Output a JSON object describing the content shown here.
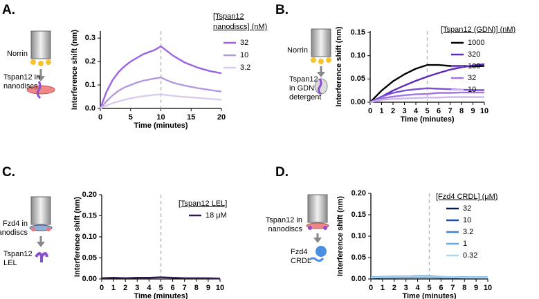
{
  "chart_data": [
    {
      "type": "line",
      "panel_label": "A.",
      "schematic_labels": [
        [
          "Norrin"
        ],
        [
          "Tspan12 in",
          "nanodiscs"
        ]
      ],
      "xlabel": "Time (minutes)",
      "ylabel": "Interference shift (nm)",
      "xlim": [
        0,
        20
      ],
      "ylim": [
        0,
        0.33
      ],
      "xticks": [
        0,
        5,
        10,
        15,
        20
      ],
      "yticks": [
        {
          "value": 0,
          "label": "0.0"
        },
        0.1,
        0.2,
        0.3
      ],
      "vline": 10,
      "legend_title": [
        "[Tspan12",
        "nanodiscs] (nM)"
      ],
      "x": [
        0,
        1,
        2,
        3,
        4,
        5,
        6,
        7,
        8,
        9,
        10,
        11,
        12,
        13,
        14,
        15,
        16,
        17,
        18,
        19,
        20
      ],
      "series": [
        {
          "name": "32",
          "color": "#9a63e6",
          "values": [
            0,
            0.07,
            0.12,
            0.155,
            0.18,
            0.2,
            0.215,
            0.23,
            0.24,
            0.25,
            0.265,
            0.245,
            0.225,
            0.21,
            0.195,
            0.185,
            0.175,
            0.167,
            0.16,
            0.155,
            0.15
          ]
        },
        {
          "name": "10",
          "color": "#b596e0",
          "values": [
            0,
            0.03,
            0.055,
            0.075,
            0.09,
            0.1,
            0.11,
            0.118,
            0.123,
            0.128,
            0.132,
            0.12,
            0.11,
            0.103,
            0.097,
            0.092,
            0.087,
            0.083,
            0.079,
            0.075,
            0.072
          ]
        },
        {
          "name": "3.2",
          "color": "#d9cbee",
          "values": [
            0,
            0.012,
            0.022,
            0.03,
            0.037,
            0.043,
            0.048,
            0.052,
            0.055,
            0.058,
            0.06,
            0.057,
            0.054,
            0.051,
            0.049,
            0.047,
            0.045,
            0.043,
            0.041,
            0.039,
            0.037
          ]
        }
      ]
    },
    {
      "type": "line",
      "panel_label": "B.",
      "schematic_labels": [
        [
          "Norrin"
        ],
        [
          "Tspan12",
          "in GDN",
          "detergent"
        ]
      ],
      "xlabel": "Time (minutes)",
      "ylabel": "Interference shift (nm)",
      "xlim": [
        0,
        10
      ],
      "ylim": [
        0,
        0.153
      ],
      "xticks": [
        0,
        1,
        2,
        3,
        4,
        5,
        6,
        7,
        8,
        9,
        10
      ],
      "yticks": [
        {
          "value": 0,
          "label": "0.00"
        },
        {
          "value": 0.05,
          "label": "0.05"
        },
        {
          "value": 0.1,
          "label": "0.10"
        },
        {
          "value": 0.15,
          "label": "0.15"
        }
      ],
      "vline": 5,
      "legend_title": [
        "[Tspan12 (GDN)] (nM)"
      ],
      "x": [
        0,
        1,
        2,
        3,
        4,
        5,
        6,
        7,
        8,
        9,
        10
      ],
      "series": [
        {
          "name": "1000",
          "color": "#000000",
          "values": [
            0,
            0.025,
            0.045,
            0.06,
            0.072,
            0.08,
            0.08,
            0.078,
            0.078,
            0.077,
            0.078
          ]
        },
        {
          "name": "320",
          "color": "#5a2bb8",
          "values": [
            0,
            0.012,
            0.025,
            0.036,
            0.046,
            0.055,
            0.063,
            0.07,
            0.075,
            0.079,
            0.082
          ]
        },
        {
          "name": "100",
          "color": "#7b4fd6",
          "values": [
            0,
            0.012,
            0.02,
            0.025,
            0.028,
            0.03,
            0.029,
            0.028,
            0.027,
            0.026,
            0.026
          ]
        },
        {
          "name": "32",
          "color": "#a273e6",
          "values": [
            0,
            0.008,
            0.012,
            0.015,
            0.017,
            0.018,
            0.02,
            0.02,
            0.021,
            0.021,
            0.021
          ]
        },
        {
          "name": "10",
          "color": "#cdb6f0",
          "values": [
            0,
            0.005,
            0.007,
            0.008,
            0.009,
            0.01,
            0.01,
            0.011,
            0.011,
            0.011,
            0.011
          ]
        }
      ]
    },
    {
      "type": "line",
      "panel_label": "C.",
      "schematic_labels": [
        [
          "Fzd4 in",
          "nanodiscs"
        ],
        [
          "Tspan12",
          "LEL"
        ]
      ],
      "xlabel": "Time (minutes)",
      "ylabel": "Interference shift (nm)",
      "xlim": [
        0,
        10
      ],
      "ylim": [
        0,
        0.2
      ],
      "xticks": [
        0,
        1,
        2,
        3,
        4,
        5,
        6,
        7,
        8,
        9,
        10
      ],
      "yticks": [
        {
          "value": 0,
          "label": "0.00"
        },
        {
          "value": 0.05,
          "label": "0.05"
        },
        {
          "value": 0.1,
          "label": "0.10"
        },
        {
          "value": 0.15,
          "label": "0.15"
        },
        {
          "value": 0.2,
          "label": "0.20"
        }
      ],
      "vline": 5,
      "legend_title": [
        "[Tspan12 LEL]"
      ],
      "x": [
        0,
        1,
        2,
        3,
        4,
        5,
        6,
        7,
        8,
        9,
        10
      ],
      "series": [
        {
          "name": "18 μM",
          "color": "#2e1a4d",
          "values": [
            0.002,
            0.003,
            0.002,
            0.003,
            0.003,
            0.004,
            0.003,
            0.002,
            0.002,
            0.002,
            0.001
          ]
        }
      ]
    },
    {
      "type": "line",
      "panel_label": "D.",
      "schematic_labels": [
        [
          "Tspan12 in",
          "nanodiscs"
        ],
        [
          "Fzd4",
          "CRDL"
        ]
      ],
      "xlabel": "Time (minutes)",
      "ylabel": "Interference shift (nm)",
      "xlim": [
        0,
        10
      ],
      "ylim": [
        0,
        0.2
      ],
      "xticks": [
        0,
        1,
        2,
        3,
        4,
        5,
        6,
        7,
        8,
        9,
        10
      ],
      "yticks": [
        {
          "value": 0,
          "label": "0.00"
        },
        {
          "value": 0.05,
          "label": "0.05"
        },
        {
          "value": 0.1,
          "label": "0.10"
        },
        {
          "value": 0.15,
          "label": "0.15"
        },
        {
          "value": 0.2,
          "label": "0.20"
        }
      ],
      "vline": 5,
      "legend_title": [
        "[Fzd4 CRDL] (μM)"
      ],
      "x": [
        0,
        1,
        2,
        3,
        4,
        5,
        6,
        7,
        8,
        9,
        10
      ],
      "series": [
        {
          "name": "32",
          "color": "#0b1f45",
          "values": [
            0.002,
            0.003,
            0.003,
            0.004,
            0.004,
            0.004,
            0.003,
            0.003,
            0.002,
            0.002,
            0.002
          ]
        },
        {
          "name": "10",
          "color": "#1f4fa3",
          "values": [
            0.003,
            0.004,
            0.004,
            0.005,
            0.005,
            0.005,
            0.004,
            0.003,
            0.003,
            0.003,
            0.003
          ]
        },
        {
          "name": "3.2",
          "color": "#3d80d8",
          "values": [
            0.004,
            0.005,
            0.005,
            0.006,
            0.006,
            0.006,
            0.005,
            0.004,
            0.004,
            0.003,
            0.003
          ]
        },
        {
          "name": "1",
          "color": "#6aa8e2",
          "values": [
            0.004,
            0.005,
            0.006,
            0.006,
            0.007,
            0.007,
            0.005,
            0.004,
            0.004,
            0.004,
            0.004
          ]
        },
        {
          "name": "0.32",
          "color": "#a8d4f0",
          "values": [
            0.003,
            0.004,
            0.004,
            0.005,
            0.005,
            0.005,
            0.004,
            0.004,
            0.003,
            0.003,
            0.003
          ]
        }
      ]
    }
  ]
}
